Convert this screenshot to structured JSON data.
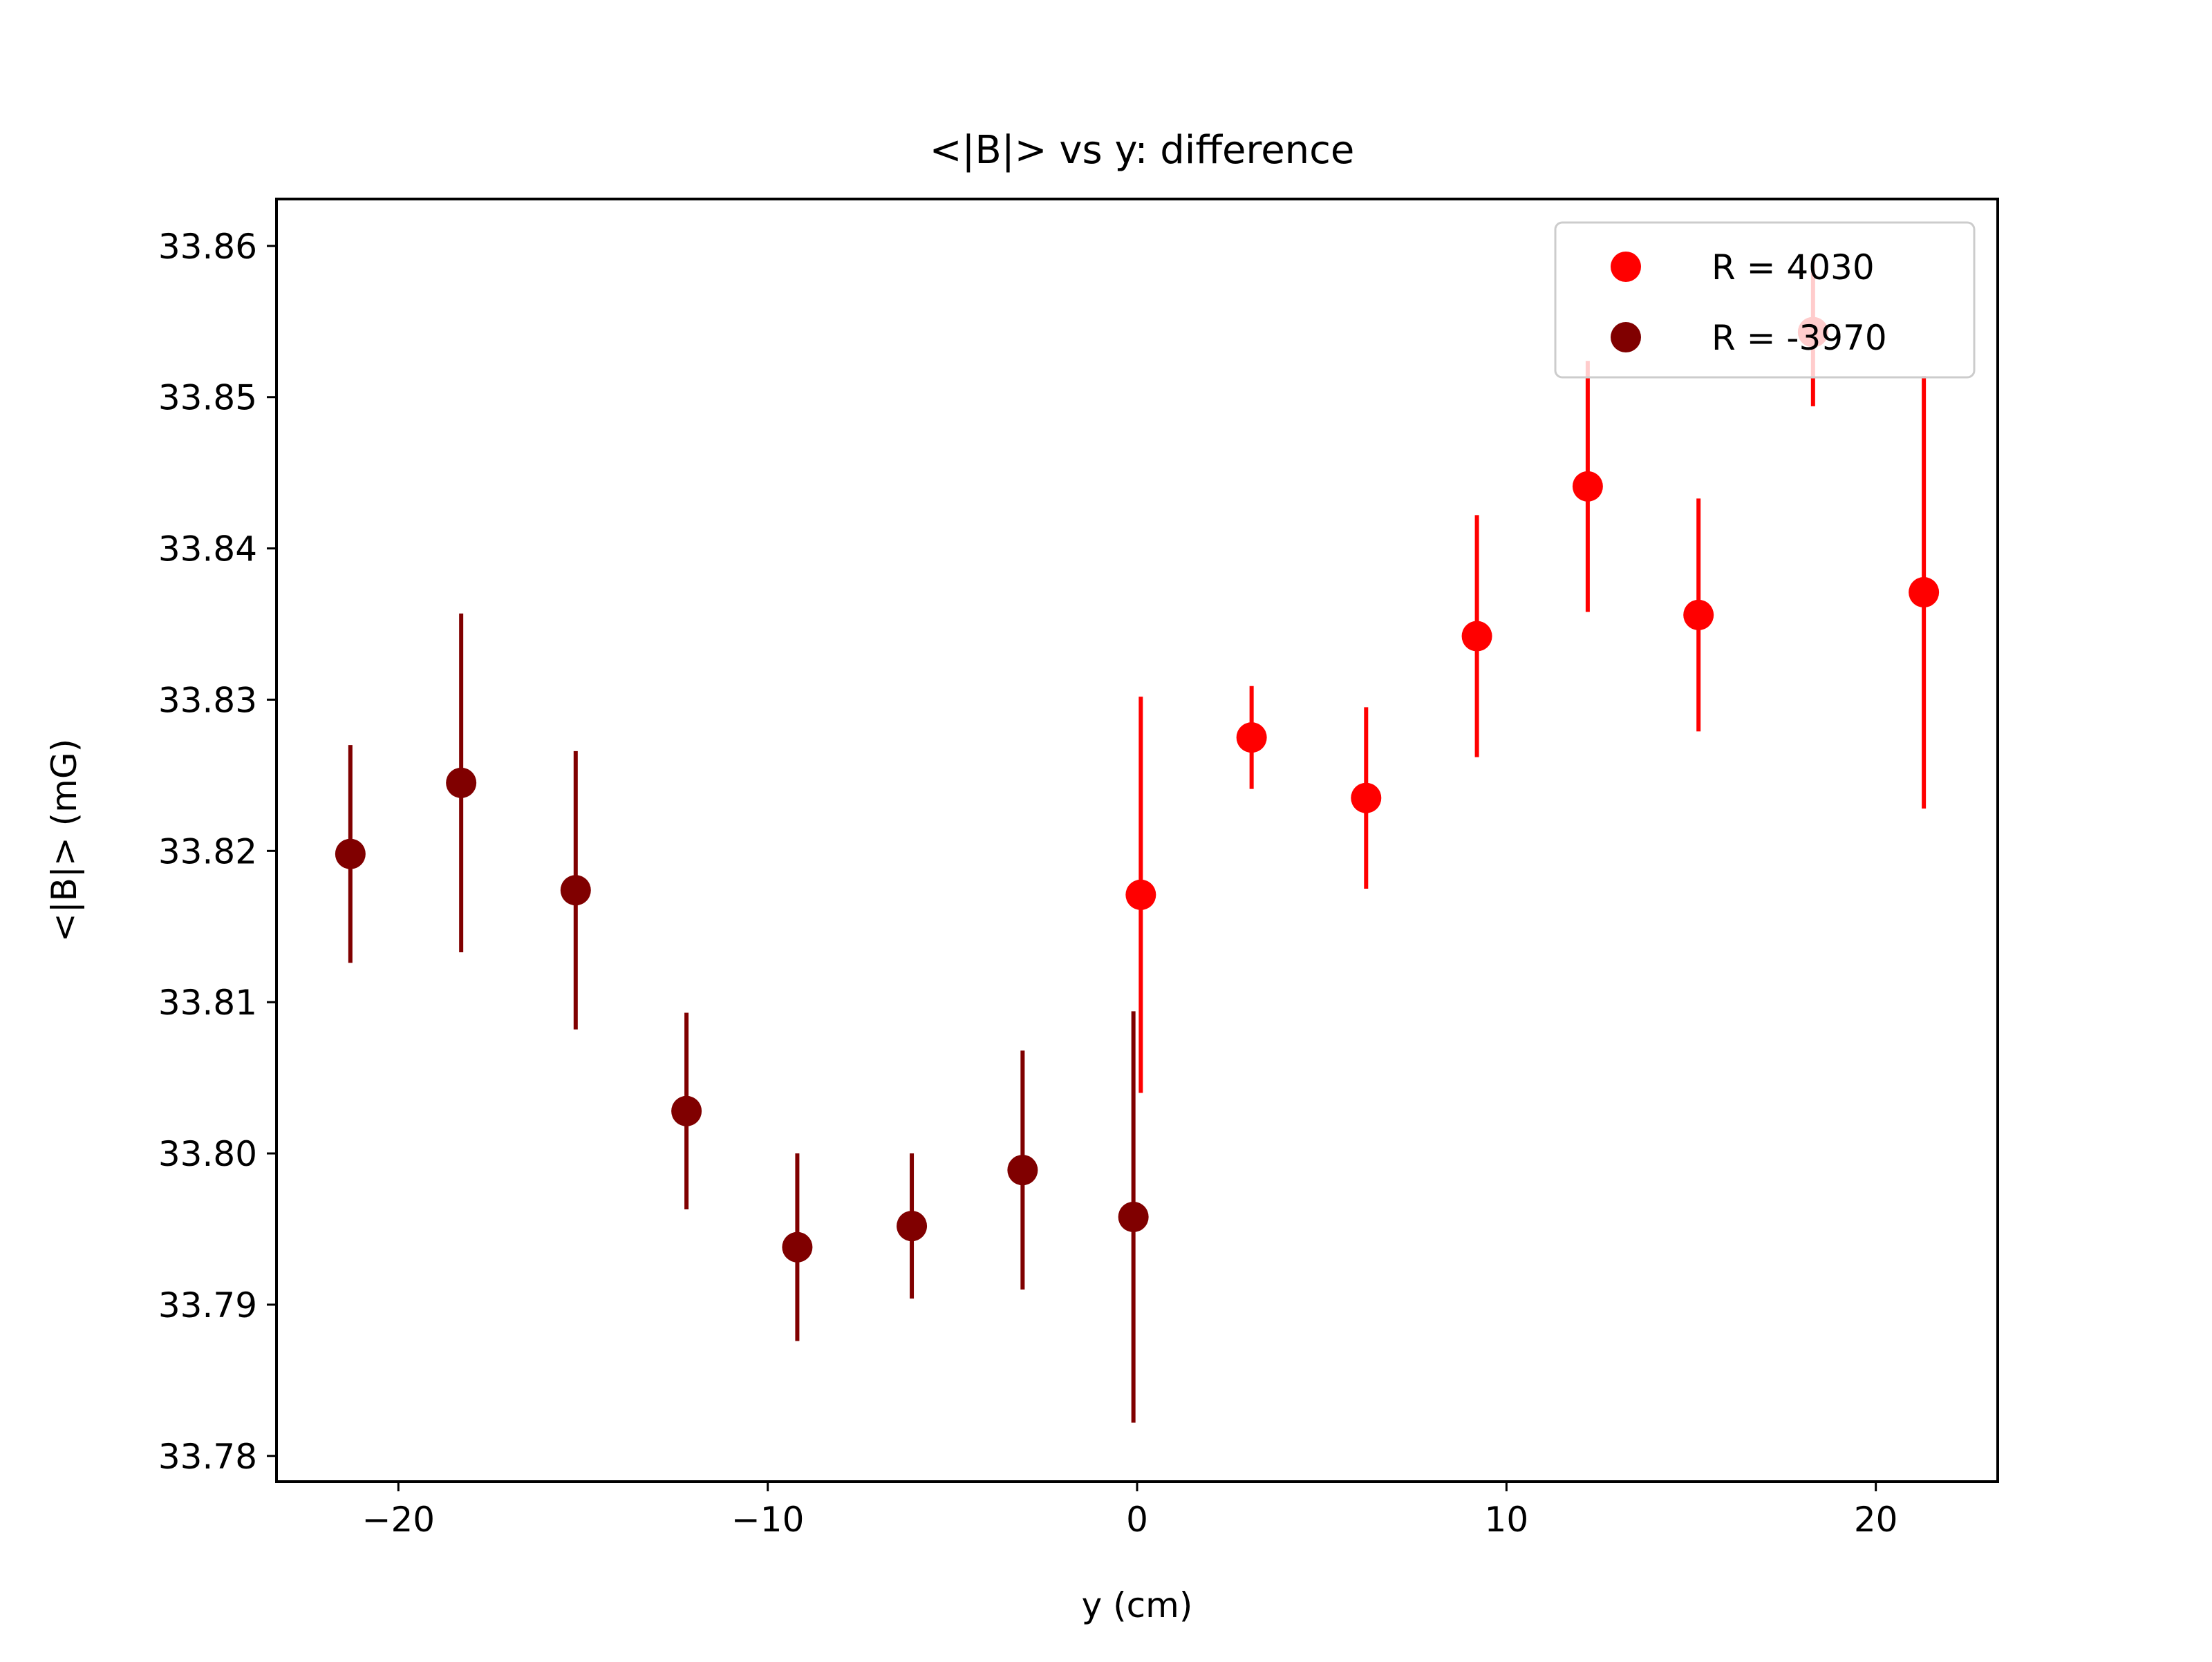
{
  "chart_data": {
    "type": "scatter",
    "title": "<|B|> vs y: difference",
    "xlabel": "y (cm)",
    "ylabel": "<|B|> (mG)",
    "xlim": [
      -23.3,
      23.3
    ],
    "ylim": [
      33.7783,
      33.8631
    ],
    "xticks": [
      -20,
      -10,
      0,
      10,
      20
    ],
    "xtick_labels": [
      "−20",
      "−10",
      "0",
      "10",
      "20"
    ],
    "yticks": [
      33.78,
      33.79,
      33.8,
      33.81,
      33.82,
      33.83,
      33.84,
      33.85,
      33.86
    ],
    "ytick_labels": [
      "33.78",
      "33.79",
      "33.80",
      "33.81",
      "33.82",
      "33.83",
      "33.84",
      "33.85",
      "33.86"
    ],
    "grid": false,
    "legend_position": "top-right",
    "series": [
      {
        "name": "R = 4030",
        "color": "#ff0000",
        "points": [
          {
            "x": 0.1,
            "y": 33.8171,
            "err": 0.0131
          },
          {
            "x": 3.1,
            "y": 33.8275,
            "err": 0.0034
          },
          {
            "x": 6.2,
            "y": 33.8235,
            "err": 0.006
          },
          {
            "x": 9.2,
            "y": 33.8342,
            "err": 0.008
          },
          {
            "x": 12.2,
            "y": 33.8441,
            "err": 0.0083
          },
          {
            "x": 15.2,
            "y": 33.8356,
            "err": 0.0077
          },
          {
            "x": 18.3,
            "y": 33.8543,
            "err": 0.0049
          },
          {
            "x": 21.3,
            "y": 33.8371,
            "err": 0.0143
          }
        ]
      },
      {
        "name": "R = -3970",
        "color": "#800000",
        "points": [
          {
            "x": -21.3,
            "y": 33.8198,
            "err": 0.0072
          },
          {
            "x": -18.3,
            "y": 33.8245,
            "err": 0.0112
          },
          {
            "x": -15.2,
            "y": 33.8174,
            "err": 0.0092
          },
          {
            "x": -12.2,
            "y": 33.8028,
            "err": 0.0065
          },
          {
            "x": -9.2,
            "y": 33.7938,
            "err": 0.0062
          },
          {
            "x": -6.1,
            "y": 33.7952,
            "err": 0.0048
          },
          {
            "x": -3.1,
            "y": 33.7989,
            "err": 0.0079
          },
          {
            "x": -0.1,
            "y": 33.7958,
            "err": 0.0136
          }
        ]
      }
    ]
  }
}
